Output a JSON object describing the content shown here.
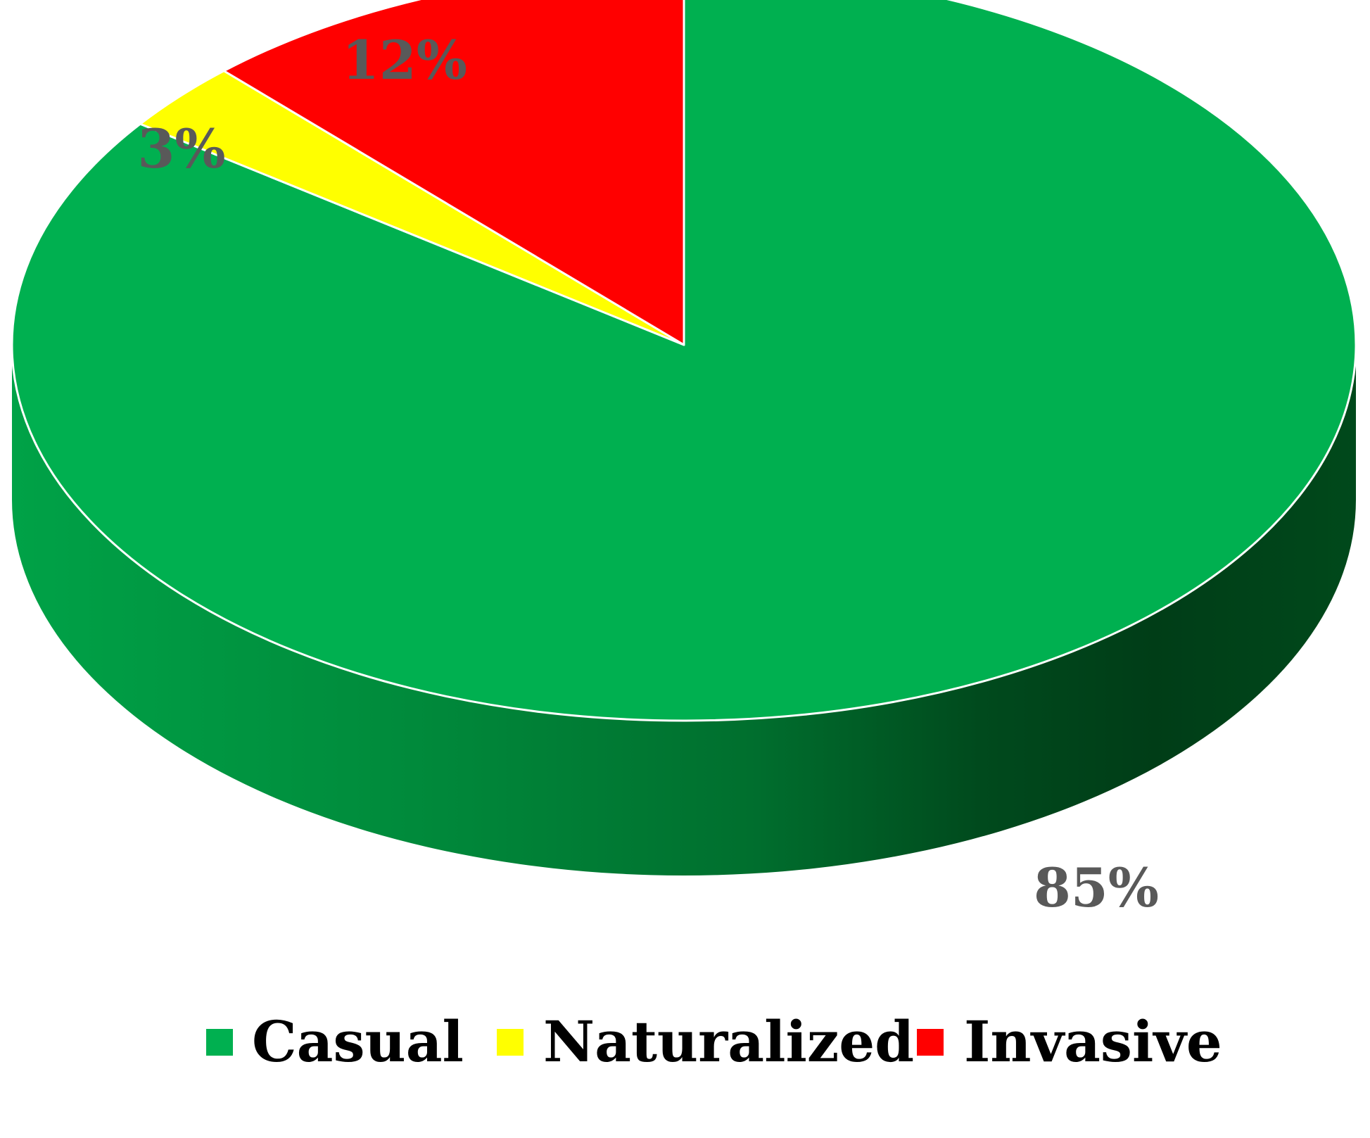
{
  "chart_data": {
    "type": "pie",
    "style": "3d",
    "legend_position": "bottom",
    "series": [
      {
        "name": "Casual",
        "value": 85,
        "label": "85%",
        "color": "#00b050"
      },
      {
        "name": "Naturalized",
        "value": 3,
        "label": "3%",
        "color": "#ffff00"
      },
      {
        "name": "Invasive",
        "value": 12,
        "label": "12%",
        "color": "#ff0000"
      }
    ]
  }
}
